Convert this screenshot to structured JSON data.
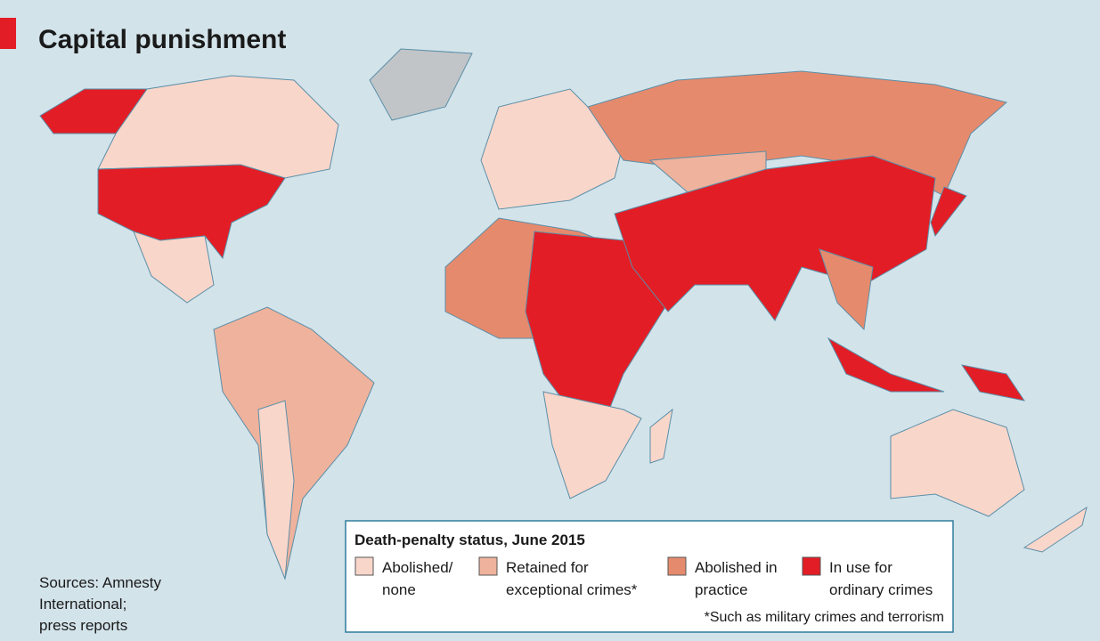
{
  "title": "Capital punishment",
  "legend": {
    "title": "Death-penalty status, June 2015",
    "items": [
      {
        "lines": [
          "Abolished/",
          "none"
        ],
        "color": "#f9d6ca"
      },
      {
        "lines": [
          "Retained for",
          "exceptional crimes*"
        ],
        "color": "#efb29c"
      },
      {
        "lines": [
          "Abolished in",
          "practice"
        ],
        "color": "#e68a6d"
      },
      {
        "lines": [
          "In use for",
          "ordinary crimes"
        ],
        "color": "#e31d25"
      }
    ],
    "footnote": "*Such as military crimes and terrorism"
  },
  "source": [
    "Sources: Amnesty",
    "International;",
    "press reports"
  ]
}
